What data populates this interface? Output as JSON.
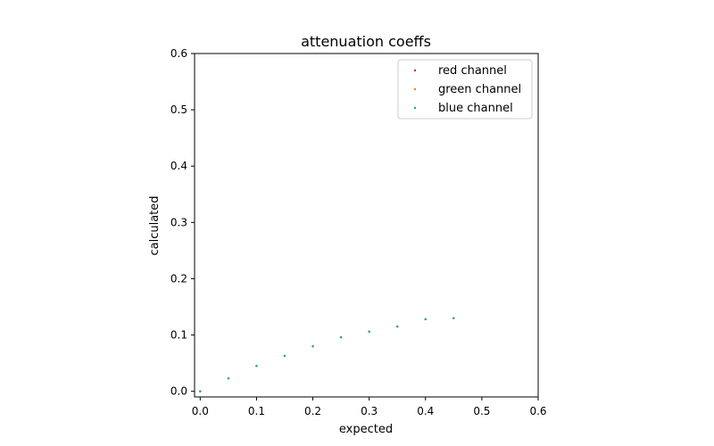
{
  "chart_data": {
    "type": "scatter",
    "title": "attenuation coeffs",
    "xlabel": "expected",
    "ylabel": "calculated",
    "xlim": [
      -0.01,
      0.6
    ],
    "ylim": [
      -0.01,
      0.6
    ],
    "xticks": [
      "0.0",
      "0.1",
      "0.2",
      "0.3",
      "0.4",
      "0.5",
      "0.6"
    ],
    "yticks": [
      "0.0",
      "0.1",
      "0.2",
      "0.3",
      "0.4",
      "0.5",
      "0.6"
    ],
    "grid": false,
    "legend_position": "top-right",
    "series": [
      {
        "name": "red channel",
        "color": "#d62728",
        "x": [
          0.0,
          0.05,
          0.1,
          0.15,
          0.2,
          0.25,
          0.3,
          0.35,
          0.4,
          0.45
        ],
        "y": [
          0.0,
          0.023,
          0.045,
          0.063,
          0.08,
          0.096,
          0.106,
          0.115,
          0.128,
          0.13
        ]
      },
      {
        "name": "green channel",
        "color": "#ff7f0e",
        "x": [
          0.0,
          0.05,
          0.1,
          0.15,
          0.2,
          0.25,
          0.3,
          0.35,
          0.4,
          0.45
        ],
        "y": [
          0.0,
          0.023,
          0.045,
          0.063,
          0.08,
          0.096,
          0.106,
          0.115,
          0.128,
          0.13
        ]
      },
      {
        "name": "blue channel",
        "color": "#17a2b8",
        "x": [
          0.0,
          0.05,
          0.1,
          0.15,
          0.2,
          0.25,
          0.3,
          0.35,
          0.4,
          0.45
        ],
        "y": [
          0.0,
          0.023,
          0.045,
          0.063,
          0.08,
          0.096,
          0.106,
          0.115,
          0.128,
          0.13
        ]
      }
    ]
  }
}
